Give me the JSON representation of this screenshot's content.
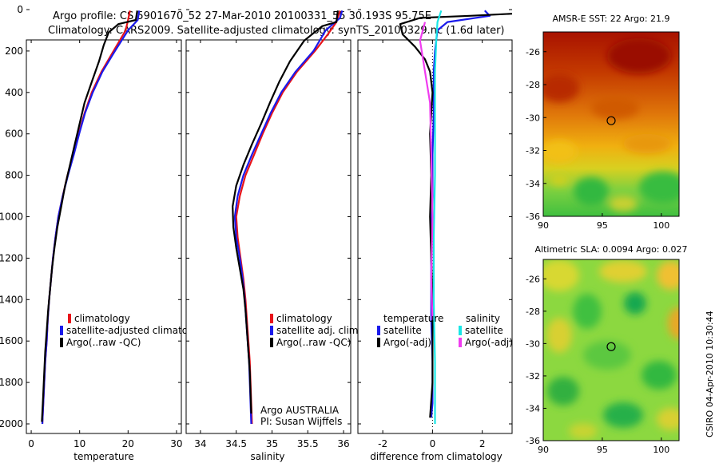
{
  "header": {
    "line1": "Argo profile: CS 5901670_52 27-Mar-2010 20100331_55 30.193S 95.75E",
    "line2": "Climatology: CARS2009. Satellite-adjusted climatology: synTS_20100329.nc (1.6d later)"
  },
  "colors": {
    "climatology": "#e8141a",
    "satellite": "#1a1aeb",
    "argo": "#000000",
    "sat_sal": "#19e6e6",
    "argo_sal": "#f03cf0"
  },
  "chart_data": [
    {
      "type": "line",
      "id": "temperature",
      "xlabel": "temperature",
      "xlim": [
        -1,
        31
      ],
      "ylim": [
        2050,
        -10
      ],
      "xticks": [
        0,
        10,
        20,
        30
      ],
      "yticks": [
        0,
        200,
        400,
        600,
        800,
        1000,
        1200,
        1400,
        1600,
        1800,
        2000
      ],
      "legend": [
        "climatology",
        "satellite-adjusted climatology",
        "Argo(..raw -QC)"
      ],
      "series": [
        {
          "name": "climatology",
          "color": "climatology",
          "points": [
            [
              20.4,
              5
            ],
            [
              20,
              50
            ],
            [
              19.5,
              100
            ],
            [
              17,
              200
            ],
            [
              14.5,
              300
            ],
            [
              12.5,
              400
            ],
            [
              11,
              500
            ],
            [
              9.8,
              600
            ],
            [
              8.7,
              700
            ],
            [
              7.5,
              800
            ],
            [
              6.5,
              900
            ],
            [
              5.6,
              1000
            ],
            [
              5,
              1100
            ],
            [
              4.5,
              1200
            ],
            [
              4.1,
              1300
            ],
            [
              3.7,
              1400
            ],
            [
              3.4,
              1500
            ],
            [
              3.2,
              1600
            ],
            [
              2.9,
              1700
            ],
            [
              2.7,
              1800
            ],
            [
              2.5,
              1900
            ],
            [
              2.3,
              2000
            ]
          ]
        },
        {
          "name": "satellite",
          "color": "satellite",
          "points": [
            [
              22.3,
              5
            ],
            [
              22,
              50
            ],
            [
              20,
              100
            ],
            [
              17.3,
              200
            ],
            [
              14.7,
              300
            ],
            [
              12.7,
              400
            ],
            [
              11.1,
              500
            ],
            [
              9.9,
              600
            ],
            [
              8.8,
              700
            ],
            [
              7.6,
              800
            ],
            [
              6.5,
              900
            ],
            [
              5.6,
              1000
            ],
            [
              5,
              1100
            ],
            [
              4.5,
              1200
            ],
            [
              4.1,
              1300
            ],
            [
              3.7,
              1400
            ],
            [
              3.4,
              1500
            ],
            [
              3.2,
              1600
            ],
            [
              2.9,
              1700
            ],
            [
              2.7,
              1800
            ],
            [
              2.5,
              1900
            ],
            [
              2.3,
              2000
            ]
          ]
        },
        {
          "name": "argo",
          "color": "argo",
          "points": [
            [
              21.9,
              5
            ],
            [
              21.6,
              50
            ],
            [
              18,
              70
            ],
            [
              16,
              110
            ],
            [
              15,
              170
            ],
            [
              14,
              250
            ],
            [
              12.5,
              350
            ],
            [
              11,
              450
            ],
            [
              10,
              550
            ],
            [
              9,
              650
            ],
            [
              8,
              750
            ],
            [
              7,
              850
            ],
            [
              6.2,
              950
            ],
            [
              5.4,
              1050
            ],
            [
              4.8,
              1150
            ],
            [
              4.3,
              1250
            ],
            [
              3.9,
              1350
            ],
            [
              3.5,
              1450
            ],
            [
              3.2,
              1550
            ],
            [
              2.9,
              1650
            ],
            [
              2.6,
              1800
            ],
            [
              2.4,
              1900
            ],
            [
              2.2,
              1990
            ]
          ]
        }
      ]
    },
    {
      "type": "line",
      "id": "salinity",
      "xlabel": "salinity",
      "xlim": [
        33.8,
        36.1
      ],
      "ylim": [
        2050,
        -10
      ],
      "xticks": [
        34,
        34.5,
        35,
        35.5,
        36
      ],
      "legend": [
        "climatology",
        "satellite adj. clim.",
        "Argo(..raw -QC)"
      ],
      "annotation": [
        "Argo AUSTRALIA",
        "PI: Susan Wijffels"
      ],
      "series": [
        {
          "name": "climatology",
          "color": "climatology",
          "points": [
            [
              35.95,
              5
            ],
            [
              35.9,
              60
            ],
            [
              35.78,
              120
            ],
            [
              35.6,
              200
            ],
            [
              35.35,
              300
            ],
            [
              35.15,
              400
            ],
            [
              35,
              500
            ],
            [
              34.87,
              600
            ],
            [
              34.75,
              700
            ],
            [
              34.63,
              800
            ],
            [
              34.55,
              900
            ],
            [
              34.5,
              1000
            ],
            [
              34.52,
              1100
            ],
            [
              34.56,
              1200
            ],
            [
              34.6,
              1300
            ],
            [
              34.63,
              1400
            ],
            [
              34.65,
              1500
            ],
            [
              34.67,
              1600
            ],
            [
              34.69,
              1700
            ],
            [
              34.7,
              1800
            ],
            [
              34.71,
              1900
            ],
            [
              34.72,
              2000
            ]
          ]
        },
        {
          "name": "satellite",
          "color": "satellite",
          "points": [
            [
              35.98,
              5
            ],
            [
              35.95,
              40
            ],
            [
              35.75,
              100
            ],
            [
              35.58,
              200
            ],
            [
              35.33,
              300
            ],
            [
              35.13,
              400
            ],
            [
              34.98,
              500
            ],
            [
              34.85,
              600
            ],
            [
              34.72,
              700
            ],
            [
              34.6,
              800
            ],
            [
              34.52,
              900
            ],
            [
              34.48,
              1000
            ],
            [
              34.5,
              1100
            ],
            [
              34.55,
              1200
            ],
            [
              34.59,
              1300
            ],
            [
              34.62,
              1400
            ],
            [
              34.64,
              1500
            ],
            [
              34.66,
              1600
            ],
            [
              34.68,
              1700
            ],
            [
              34.69,
              1800
            ],
            [
              34.7,
              1900
            ],
            [
              34.71,
              2000
            ]
          ]
        },
        {
          "name": "argo",
          "color": "argo",
          "points": [
            [
              35.92,
              5
            ],
            [
              35.9,
              60
            ],
            [
              35.7,
              80
            ],
            [
              35.45,
              150
            ],
            [
              35.25,
              250
            ],
            [
              35.1,
              350
            ],
            [
              34.97,
              450
            ],
            [
              34.85,
              550
            ],
            [
              34.72,
              650
            ],
            [
              34.6,
              750
            ],
            [
              34.5,
              850
            ],
            [
              34.45,
              950
            ],
            [
              34.46,
              1050
            ],
            [
              34.5,
              1150
            ],
            [
              34.55,
              1250
            ],
            [
              34.6,
              1350
            ],
            [
              34.63,
              1450
            ],
            [
              34.65,
              1550
            ],
            [
              34.67,
              1650
            ],
            [
              34.69,
              1750
            ],
            [
              34.7,
              1850
            ],
            [
              34.71,
              1950
            ]
          ]
        }
      ]
    },
    {
      "type": "line",
      "id": "difference",
      "xlabel": "difference from climatology",
      "xlim": [
        -3,
        3.2
      ],
      "ylim": [
        2050,
        -10
      ],
      "xticks": [
        -2,
        0,
        2
      ],
      "legend_title_left": "temperature",
      "legend_title_right": "salinity",
      "legend_left": [
        "satellite",
        "Argo(-adj)"
      ],
      "legend_right": [
        "satellite",
        "Argo(-adj)"
      ],
      "series": [
        {
          "name": "temp-satellite",
          "color": "satellite",
          "points": [
            [
              2.1,
              5
            ],
            [
              2.3,
              30
            ],
            [
              0.6,
              60
            ],
            [
              0.2,
              100
            ],
            [
              0.1,
              200
            ],
            [
              0.05,
              300
            ],
            [
              0.05,
              500
            ],
            [
              0,
              700
            ],
            [
              0,
              900
            ],
            [
              -0.05,
              1100
            ],
            [
              -0.05,
              1300
            ],
            [
              -0.05,
              1500
            ],
            [
              0,
              1700
            ],
            [
              0,
              1900
            ],
            [
              -0.05,
              1970
            ]
          ]
        },
        {
          "name": "temp-argo",
          "color": "argo",
          "points": [
            [
              3.2,
              20
            ],
            [
              1.5,
              30
            ],
            [
              -0.5,
              40
            ],
            [
              -1.3,
              70
            ],
            [
              -1.2,
              120
            ],
            [
              -0.7,
              180
            ],
            [
              -0.3,
              240
            ],
            [
              -0.1,
              300
            ],
            [
              0,
              400
            ],
            [
              -0.1,
              600
            ],
            [
              -0.05,
              800
            ],
            [
              -0.1,
              1000
            ],
            [
              -0.05,
              1200
            ],
            [
              0,
              1400
            ],
            [
              0,
              1600
            ],
            [
              0,
              1800
            ],
            [
              -0.1,
              1970
            ]
          ]
        },
        {
          "name": "sal-satellite",
          "color": "sat_sal",
          "points": [
            [
              0.35,
              5
            ],
            [
              0.2,
              60
            ],
            [
              0.15,
              150
            ],
            [
              0.1,
              300
            ],
            [
              0.1,
              500
            ],
            [
              0.1,
              800
            ],
            [
              0.05,
              1100
            ],
            [
              0.05,
              1400
            ],
            [
              0.1,
              1700
            ],
            [
              0.1,
              2000
            ]
          ]
        },
        {
          "name": "sal-argo",
          "color": "argo_sal",
          "points": [
            [
              -0.3,
              60
            ],
            [
              -0.5,
              150
            ],
            [
              -0.3,
              300
            ],
            [
              -0.1,
              450
            ],
            [
              -0.05,
              700
            ],
            [
              0,
              1000
            ],
            [
              -0.05,
              1300
            ],
            [
              0,
              1500
            ]
          ]
        }
      ]
    },
    {
      "type": "heatmap",
      "id": "sst-map",
      "title": "AMSR-E SST: 22 Argo: 21.9",
      "xlim": [
        90,
        101.5
      ],
      "ylim": [
        -36,
        -24.8
      ],
      "xticks": [
        90,
        95,
        100
      ],
      "yticks": [
        -26,
        -28,
        -30,
        -32,
        -34,
        -36
      ],
      "marker": [
        95.75,
        -30.19
      ]
    },
    {
      "type": "heatmap",
      "id": "sla-map",
      "title": "Altimetric SLA: 0.0094 Argo: 0.027",
      "xlim": [
        90,
        101.5
      ],
      "ylim": [
        -36,
        -24.8
      ],
      "xticks": [
        90,
        95,
        100
      ],
      "yticks": [
        -26,
        -28,
        -30,
        -32,
        -34,
        -36
      ],
      "marker": [
        95.75,
        -30.19
      ]
    }
  ],
  "footer_stamp": "CSIRO 04-Apr-2010 10:30:44"
}
